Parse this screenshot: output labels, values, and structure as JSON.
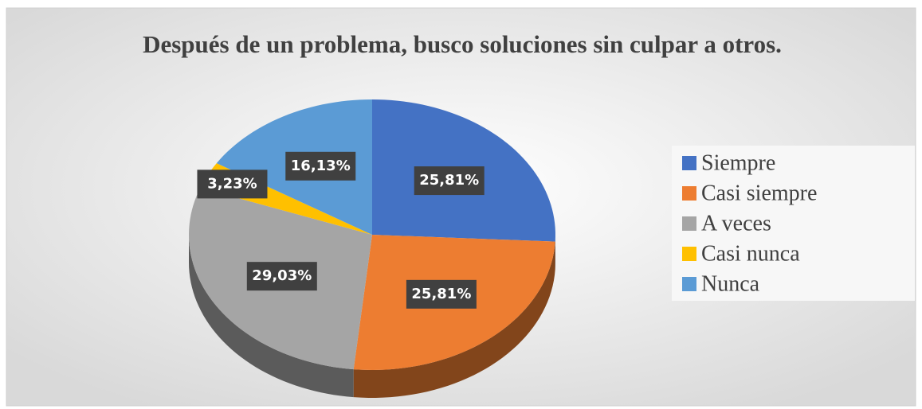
{
  "chart_data": {
    "type": "pie3d",
    "title": "Después de un problema, busco soluciones sin culpar a otros.",
    "categories": [
      "Siempre",
      "Casi siempre",
      "A veces",
      "Casi nunca",
      "Nunca"
    ],
    "values": [
      25.81,
      25.81,
      29.03,
      3.23,
      16.13
    ],
    "value_labels": [
      "25,81%",
      "25,81%",
      "29,03%",
      "3,23%",
      "16,13%"
    ],
    "colors": [
      "#4472c4",
      "#ed7d31",
      "#a5a5a5",
      "#ffc000",
      "#5b9bd5"
    ],
    "legend": "right"
  }
}
